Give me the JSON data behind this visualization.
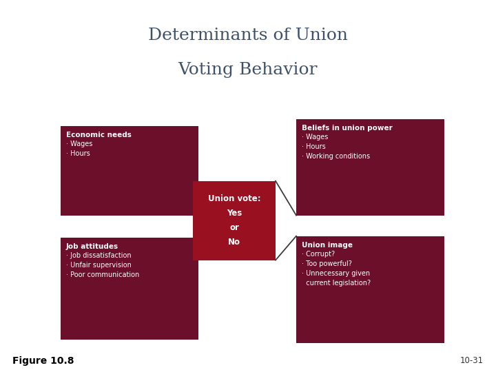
{
  "title_line1": "Determinants of Union",
  "title_line2": "Voting Behavior",
  "title_color": "#3d5269",
  "title_bg": "#cdd4b0",
  "separator_color": "#b0c0d0",
  "bg_color": "#ffffff",
  "box_color_outer": "#6b0f2b",
  "box_color_center": "#991020",
  "text_color": "#ffffff",
  "figure_label": "Figure 10.8",
  "page_number": "10-31",
  "tl_box": {
    "title": "Economic needs",
    "items": [
      "· Wages",
      "· Hours"
    ]
  },
  "tr_box": {
    "title": "Beliefs in union power",
    "items": [
      "· Wages",
      "· Hours",
      "· Working conditions"
    ]
  },
  "bl_box": {
    "title": "Job attitudes",
    "items": [
      "· Job dissatisfaction",
      "· Unfair supervision",
      "· Poor communication"
    ]
  },
  "br_box": {
    "title": "Union image",
    "items": [
      "· Corrupt?",
      "· Too powerful?",
      "· Unnecessary given\n  current legislation?"
    ]
  },
  "center_text": "Union vote:\nYes\nor\nNo",
  "line_color": "#3a3a3a"
}
